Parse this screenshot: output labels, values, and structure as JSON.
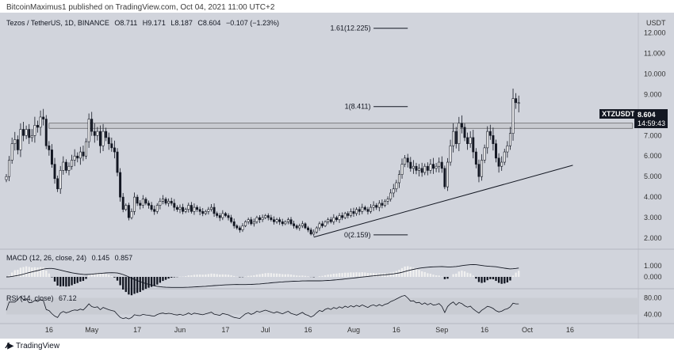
{
  "header": {
    "publisher": "BitcoinMaximus1 published on TradingView.com, Oct 04, 2021 11:00 UTC+2"
  },
  "footer": {
    "brand": "TradingView"
  },
  "chart_data": {
    "type": "candlestick",
    "symbol_line": "Tezos / TetherUS, 1D, BINANCE",
    "ohlc": {
      "o": "8.711",
      "h": "9.171",
      "l": "8.187",
      "c": "8.604",
      "chg": "−0.107 (−1.23%)"
    },
    "currency": "USDT",
    "price_ticks": [
      "12.000",
      "11.000",
      "10.000",
      "9.000",
      "8.000",
      "7.000",
      "6.000",
      "5.000",
      "4.000",
      "3.000",
      "2.000"
    ],
    "price_tick_values": [
      12,
      11,
      10,
      9,
      8,
      7,
      6,
      5,
      4,
      3,
      2
    ],
    "ylim": [
      1.5,
      12.6
    ],
    "x_ticks": [
      {
        "label": "16",
        "day": 15
      },
      {
        "label": "May",
        "day": 30
      },
      {
        "label": "17",
        "day": 46
      },
      {
        "label": "Jun",
        "day": 61
      },
      {
        "label": "17",
        "day": 77
      },
      {
        "label": "Jul",
        "day": 91
      },
      {
        "label": "16",
        "day": 106
      },
      {
        "label": "Aug",
        "day": 122
      },
      {
        "label": "16",
        "day": 137
      },
      {
        "label": "Sep",
        "day": 153
      },
      {
        "label": "16",
        "day": 168
      },
      {
        "label": "Oct",
        "day": 183
      },
      {
        "label": "16",
        "day": 198
      }
    ],
    "xlim": [
      0,
      222
    ],
    "last_price_label": {
      "symbol": "XTZUSDT",
      "price": "8.604",
      "countdown": "14:59:43"
    },
    "fib_levels": [
      {
        "label": "1.61(12.225)",
        "value": 12.225
      },
      {
        "label": "1(8.411)",
        "value": 8.411
      },
      {
        "label": "0(2.159)",
        "value": 2.159
      }
    ],
    "resistance_zone": [
      7.35,
      7.6
    ],
    "support_line": [
      {
        "day": 108,
        "value": 2.05
      },
      {
        "day": 199,
        "value": 5.55
      }
    ],
    "candles_close": [
      5.0,
      5.8,
      6.6,
      6.8,
      6.3,
      7.3,
      7.0,
      7.3,
      6.9,
      7.0,
      7.5,
      7.4,
      7.9,
      7.8,
      6.5,
      6.3,
      5.6,
      4.9,
      4.4,
      5.3,
      5.7,
      5.3,
      5.5,
      5.8,
      6.0,
      5.9,
      6.2,
      6.0,
      6.7,
      7.8,
      7.2,
      7.0,
      7.2,
      6.5,
      7.2,
      6.9,
      6.6,
      6.4,
      6.2,
      5.2,
      4.0,
      3.4,
      3.6,
      3.0,
      3.3,
      4.0,
      3.7,
      3.6,
      3.9,
      3.7,
      3.6,
      3.4,
      3.3,
      3.6,
      3.8,
      3.9,
      3.7,
      3.8,
      3.7,
      3.5,
      3.4,
      3.5,
      3.3,
      3.4,
      3.6,
      3.3,
      3.5,
      3.4,
      3.3,
      3.2,
      3.3,
      3.4,
      3.5,
      3.2,
      3.1,
      3.0,
      3.2,
      3.1,
      3.0,
      2.8,
      2.6,
      2.5,
      2.4,
      2.6,
      2.8,
      2.9,
      2.7,
      2.8,
      3.0,
      2.9,
      3.0,
      3.1,
      3.0,
      2.9,
      2.8,
      2.9,
      2.8,
      2.7,
      2.8,
      2.9,
      2.7,
      2.6,
      2.5,
      2.6,
      2.7,
      2.5,
      2.4,
      2.2,
      2.3,
      2.5,
      2.7,
      2.6,
      2.8,
      2.9,
      2.8,
      3.0,
      2.9,
      3.1,
      3.0,
      3.2,
      3.1,
      3.3,
      3.2,
      3.4,
      3.3,
      3.5,
      3.4,
      3.3,
      3.5,
      3.6,
      3.5,
      3.7,
      3.6,
      3.8,
      3.9,
      4.2,
      4.4,
      4.7,
      5.1,
      5.6,
      5.9,
      5.7,
      5.4,
      5.5,
      5.3,
      5.4,
      5.2,
      5.5,
      5.3,
      5.6,
      5.4,
      5.5,
      5.7,
      5.4,
      4.5,
      5.7,
      6.5,
      7.2,
      6.6,
      7.6,
      7.4,
      6.9,
      6.6,
      6.9,
      6.2,
      5.6,
      5.0,
      5.8,
      6.4,
      7.2,
      7.0,
      6.6,
      5.9,
      5.5,
      5.7,
      6.2,
      6.5,
      7.1,
      8.8,
      8.6,
      8.6
    ]
  },
  "macd": {
    "label": "MACD (12, 26, close, 24)",
    "value_macd": "0.145",
    "value_signal": "0.857",
    "ticks": [
      "1.000",
      "0.000"
    ]
  },
  "rsi": {
    "label": "RSI (14, close)",
    "value": "67.12",
    "ticks": [
      "80.00",
      "40.00"
    ]
  }
}
